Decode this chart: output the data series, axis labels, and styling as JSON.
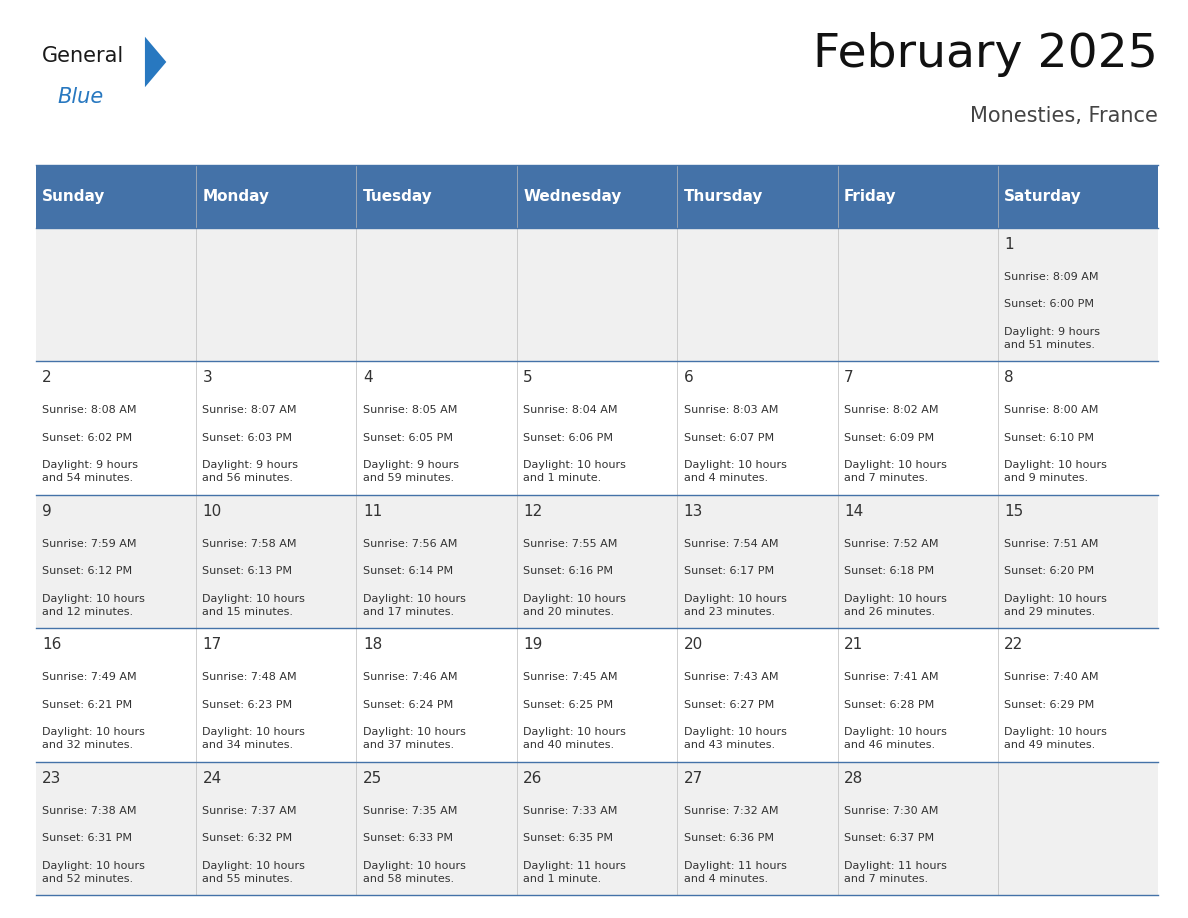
{
  "title": "February 2025",
  "subtitle": "Monesties, France",
  "days_of_week": [
    "Sunday",
    "Monday",
    "Tuesday",
    "Wednesday",
    "Thursday",
    "Friday",
    "Saturday"
  ],
  "header_bg": "#4472a8",
  "header_text": "#ffffff",
  "row_bg_odd": "#f0f0f0",
  "row_bg_even": "#ffffff",
  "border_color": "#4472a8",
  "text_color": "#333333",
  "calendar_data": [
    [
      null,
      null,
      null,
      null,
      null,
      null,
      {
        "day": "1",
        "sunrise": "8:09 AM",
        "sunset": "6:00 PM",
        "daylight": "9 hours\nand 51 minutes."
      }
    ],
    [
      {
        "day": "2",
        "sunrise": "8:08 AM",
        "sunset": "6:02 PM",
        "daylight": "9 hours\nand 54 minutes."
      },
      {
        "day": "3",
        "sunrise": "8:07 AM",
        "sunset": "6:03 PM",
        "daylight": "9 hours\nand 56 minutes."
      },
      {
        "day": "4",
        "sunrise": "8:05 AM",
        "sunset": "6:05 PM",
        "daylight": "9 hours\nand 59 minutes."
      },
      {
        "day": "5",
        "sunrise": "8:04 AM",
        "sunset": "6:06 PM",
        "daylight": "10 hours\nand 1 minute."
      },
      {
        "day": "6",
        "sunrise": "8:03 AM",
        "sunset": "6:07 PM",
        "daylight": "10 hours\nand 4 minutes."
      },
      {
        "day": "7",
        "sunrise": "8:02 AM",
        "sunset": "6:09 PM",
        "daylight": "10 hours\nand 7 minutes."
      },
      {
        "day": "8",
        "sunrise": "8:00 AM",
        "sunset": "6:10 PM",
        "daylight": "10 hours\nand 9 minutes."
      }
    ],
    [
      {
        "day": "9",
        "sunrise": "7:59 AM",
        "sunset": "6:12 PM",
        "daylight": "10 hours\nand 12 minutes."
      },
      {
        "day": "10",
        "sunrise": "7:58 AM",
        "sunset": "6:13 PM",
        "daylight": "10 hours\nand 15 minutes."
      },
      {
        "day": "11",
        "sunrise": "7:56 AM",
        "sunset": "6:14 PM",
        "daylight": "10 hours\nand 17 minutes."
      },
      {
        "day": "12",
        "sunrise": "7:55 AM",
        "sunset": "6:16 PM",
        "daylight": "10 hours\nand 20 minutes."
      },
      {
        "day": "13",
        "sunrise": "7:54 AM",
        "sunset": "6:17 PM",
        "daylight": "10 hours\nand 23 minutes."
      },
      {
        "day": "14",
        "sunrise": "7:52 AM",
        "sunset": "6:18 PM",
        "daylight": "10 hours\nand 26 minutes."
      },
      {
        "day": "15",
        "sunrise": "7:51 AM",
        "sunset": "6:20 PM",
        "daylight": "10 hours\nand 29 minutes."
      }
    ],
    [
      {
        "day": "16",
        "sunrise": "7:49 AM",
        "sunset": "6:21 PM",
        "daylight": "10 hours\nand 32 minutes."
      },
      {
        "day": "17",
        "sunrise": "7:48 AM",
        "sunset": "6:23 PM",
        "daylight": "10 hours\nand 34 minutes."
      },
      {
        "day": "18",
        "sunrise": "7:46 AM",
        "sunset": "6:24 PM",
        "daylight": "10 hours\nand 37 minutes."
      },
      {
        "day": "19",
        "sunrise": "7:45 AM",
        "sunset": "6:25 PM",
        "daylight": "10 hours\nand 40 minutes."
      },
      {
        "day": "20",
        "sunrise": "7:43 AM",
        "sunset": "6:27 PM",
        "daylight": "10 hours\nand 43 minutes."
      },
      {
        "day": "21",
        "sunrise": "7:41 AM",
        "sunset": "6:28 PM",
        "daylight": "10 hours\nand 46 minutes."
      },
      {
        "day": "22",
        "sunrise": "7:40 AM",
        "sunset": "6:29 PM",
        "daylight": "10 hours\nand 49 minutes."
      }
    ],
    [
      {
        "day": "23",
        "sunrise": "7:38 AM",
        "sunset": "6:31 PM",
        "daylight": "10 hours\nand 52 minutes."
      },
      {
        "day": "24",
        "sunrise": "7:37 AM",
        "sunset": "6:32 PM",
        "daylight": "10 hours\nand 55 minutes."
      },
      {
        "day": "25",
        "sunrise": "7:35 AM",
        "sunset": "6:33 PM",
        "daylight": "10 hours\nand 58 minutes."
      },
      {
        "day": "26",
        "sunrise": "7:33 AM",
        "sunset": "6:35 PM",
        "daylight": "11 hours\nand 1 minute."
      },
      {
        "day": "27",
        "sunrise": "7:32 AM",
        "sunset": "6:36 PM",
        "daylight": "11 hours\nand 4 minutes."
      },
      {
        "day": "28",
        "sunrise": "7:30 AM",
        "sunset": "6:37 PM",
        "daylight": "11 hours\nand 7 minutes."
      },
      null
    ]
  ],
  "logo_color_general": "#1a1a1a",
  "logo_color_blue": "#2878c0",
  "logo_triangle_color": "#2878c0",
  "fig_width": 11.88,
  "fig_height": 9.18
}
